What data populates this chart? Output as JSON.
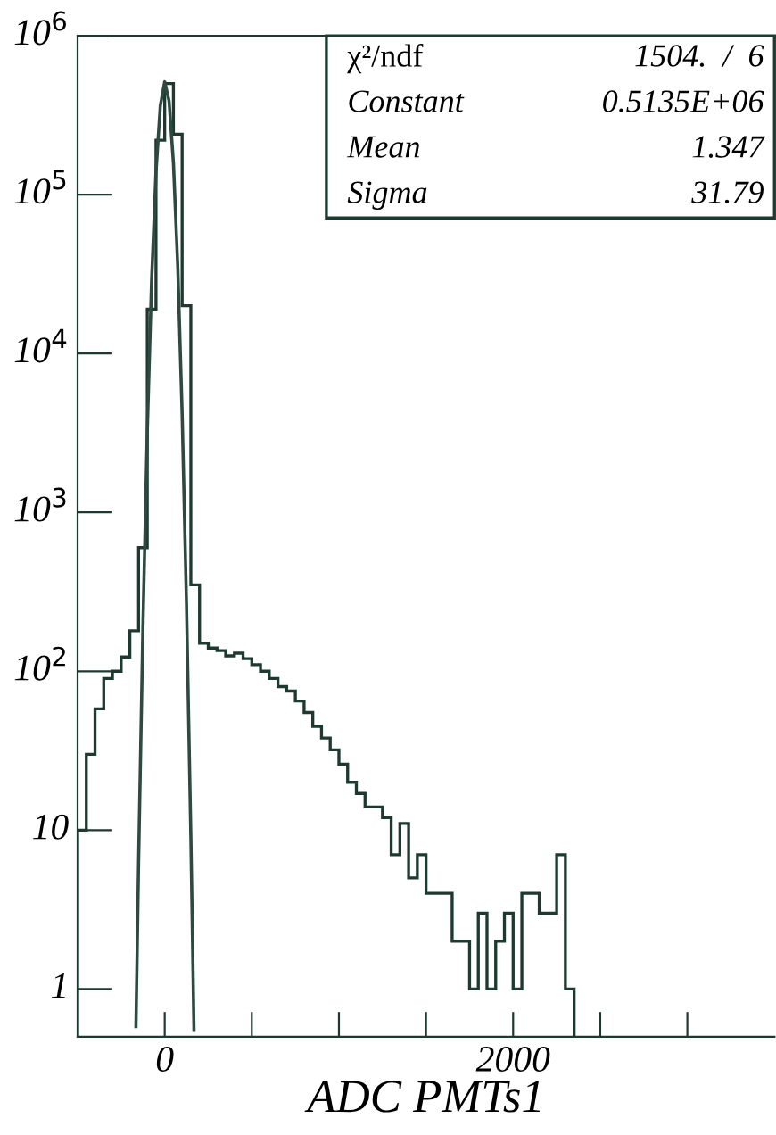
{
  "chart_data": {
    "type": "histogram",
    "xlabel": "ADC PMTs1",
    "log": "y",
    "grid": false,
    "legend": false,
    "xlim": [
      -500,
      3500
    ],
    "ylim": [
      0.5,
      1000000
    ],
    "xticks": [
      {
        "value": 0,
        "label": "0"
      },
      {
        "value": 500,
        "label": null
      },
      {
        "value": 1000,
        "label": null
      },
      {
        "value": 1500,
        "label": null
      },
      {
        "value": 2000,
        "label": "2000"
      },
      {
        "value": 2500,
        "label": null
      },
      {
        "value": 3000,
        "label": null
      }
    ],
    "yticks": [
      {
        "value": 1,
        "label": "1"
      },
      {
        "value": 10,
        "label": "10"
      },
      {
        "value": 100,
        "label": "10$^{2}$"
      },
      {
        "value": 1000,
        "label": "10$^{3}$"
      },
      {
        "value": 10000,
        "label": "10$^{4}$"
      },
      {
        "value": 100000,
        "label": "10$^{5}$"
      },
      {
        "value": 1000000,
        "label": "10$^{6}$"
      }
    ],
    "annotations": [
      "χ²/ndf",
      "1504.  /  6",
      "Constant",
      "0.5135E+06",
      "Mean",
      "1.347",
      "Sigma",
      "31.79"
    ],
    "series": [
      {
        "type": "histogram",
        "color": "#1e3a30",
        "bins": [
          -500,
          -450,
          -400,
          -350,
          -300,
          -250,
          -200,
          -150,
          -100,
          -50,
          0,
          50,
          100,
          150,
          200,
          250,
          300,
          350,
          400,
          450,
          500,
          550,
          600,
          650,
          700,
          750,
          800,
          850,
          900,
          950,
          1000,
          1050,
          1100,
          1150,
          1200,
          1250,
          1300,
          1350,
          1400,
          1450,
          1500,
          1550,
          1600,
          1650,
          1700,
          1750,
          1800,
          1850,
          1900,
          1950,
          2000,
          2050,
          2100,
          2150,
          2200,
          2250,
          2300,
          2350
        ],
        "values": [
          10,
          30,
          58,
          90,
          100,
          123,
          180,
          600,
          19000,
          220000,
          500000,
          240000,
          20000,
          350,
          150,
          140,
          135,
          125,
          130,
          120,
          110,
          100,
          90,
          80,
          75,
          65,
          55,
          45,
          38,
          32,
          26,
          20,
          17,
          14,
          14,
          12,
          7,
          11,
          5,
          7,
          4,
          4,
          4,
          2,
          2,
          1,
          3,
          1,
          2,
          3,
          1,
          4,
          4,
          3,
          3,
          7,
          1
        ]
      },
      {
        "type": "line",
        "color": "#2e4a40",
        "x": [
          -165,
          -150,
          -125,
          -100,
          -75,
          -50,
          -25,
          0,
          25,
          50,
          75,
          100,
          125,
          150,
          168
        ],
        "values": [
          0.58,
          6.2,
          190,
          3200,
          29000,
          139000,
          364000,
          513000,
          389000,
          159000,
          35000,
          4200,
          265,
          9.2,
          0.55
        ]
      }
    ]
  }
}
